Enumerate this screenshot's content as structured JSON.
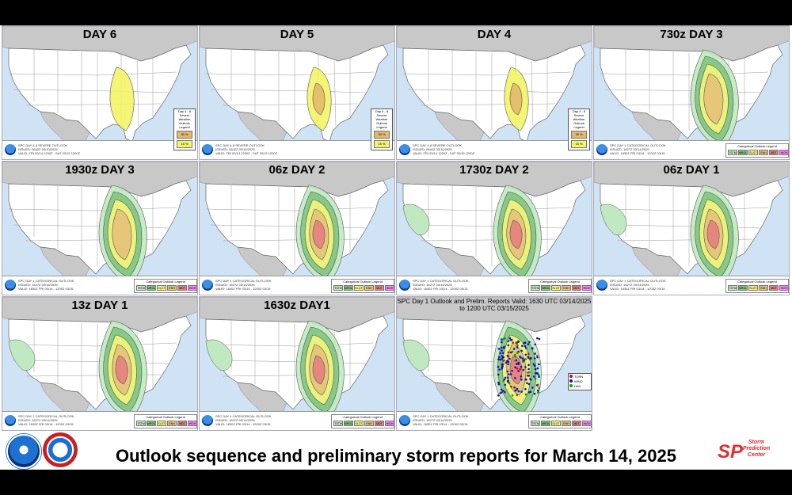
{
  "caption": "Outlook sequence and preliminary storm reports for March 14, 2025",
  "colors": {
    "ocean": "#cfe3f5",
    "land": "#ffffff",
    "foreign": "#c8c8c8",
    "tstm": "#c1e9c1",
    "mrgl": "#80c580",
    "slgt": "#f6f67b",
    "enh": "#e6c27a",
    "mdt": "#e67f7f",
    "d48_15": "#f4f466",
    "d48_30": "#e3b86e",
    "tornado": "#e00000",
    "wind": "#1010c0",
    "hail": "#00a000"
  },
  "panels": [
    {
      "title": "DAY 6",
      "kind": "d48",
      "levels": [
        "slgt15"
      ],
      "legend": {
        "title": "Day 4 - 8 Severe Weather Outlook Legend",
        "top": "30 %",
        "bottom": "15 %"
      }
    },
    {
      "title": "DAY 5",
      "kind": "d48",
      "levels": [
        "slgt15",
        "enh30"
      ],
      "legend": {
        "title": "Day 4 - 8 Severe Weather Outlook Legend",
        "top": "30 %",
        "bottom": "15 %"
      }
    },
    {
      "title": "DAY 4",
      "kind": "d48",
      "levels": [
        "slgt15",
        "enh30"
      ],
      "legend": {
        "title": "Day 4 - 8 Severe Weather Outlook Legend",
        "top": "30 %",
        "bottom": "15 %"
      }
    },
    {
      "title": "730z DAY 3",
      "kind": "cat",
      "levels": [
        "tstm",
        "mrgl",
        "slgt",
        "enh"
      ]
    },
    {
      "title": "1930z DAY 3",
      "kind": "cat",
      "levels": [
        "tstm",
        "mrgl",
        "slgt",
        "enh"
      ]
    },
    {
      "title": "06z DAY 2",
      "kind": "cat",
      "levels": [
        "tstm",
        "mrgl",
        "slgt",
        "enh",
        "mdt"
      ]
    },
    {
      "title": "1730z DAY 2",
      "kind": "cat",
      "levels": [
        "tstm",
        "mrgl",
        "slgt",
        "enh",
        "mdt"
      ],
      "west": true
    },
    {
      "title": "06z DAY 1",
      "kind": "cat",
      "levels": [
        "tstm",
        "mrgl",
        "slgt",
        "enh",
        "mdt"
      ],
      "west": true
    },
    {
      "title": "13z DAY 1",
      "kind": "cat",
      "levels": [
        "tstm",
        "mrgl",
        "slgt",
        "enh",
        "mdt"
      ],
      "west": true
    },
    {
      "title": "1630z DAY1",
      "kind": "cat",
      "levels": [
        "tstm",
        "mrgl",
        "slgt",
        "enh",
        "mdt"
      ],
      "west": true
    },
    {
      "title": "SPC Day 1 Outlook and Prelim. Reports Valid: 1630 UTC 03/14/2025 to 1200 UTC 03/15/2025",
      "kind": "reports",
      "levels": [
        "tstm",
        "mrgl",
        "slgt",
        "enh",
        "mdt"
      ],
      "west": true,
      "report_legend": [
        "TORN",
        "WIND",
        "HAIL"
      ]
    }
  ],
  "footer": {
    "d48_lines": [
      "SPC DAY 4-8 SEVERE OUTLOOK",
      "ISSUED: 0842Z 03/10/2025",
      "VALID: FRI 03/14 1200Z - SAT 03/15 1200Z"
    ],
    "cat_lines": [
      "SPC DAY 1 CATEGORICAL OUTLOOK",
      "ISSUED: 1627Z 03/14/2025",
      "VALID: 1630Z FRI 03/14 - 1200Z 03/15"
    ],
    "legend_title": "Categorical Outlook Legend",
    "cat_labels": [
      "TSTM",
      "MRGL",
      "SLGT",
      "ENH",
      "MDT",
      "HIGH"
    ]
  }
}
